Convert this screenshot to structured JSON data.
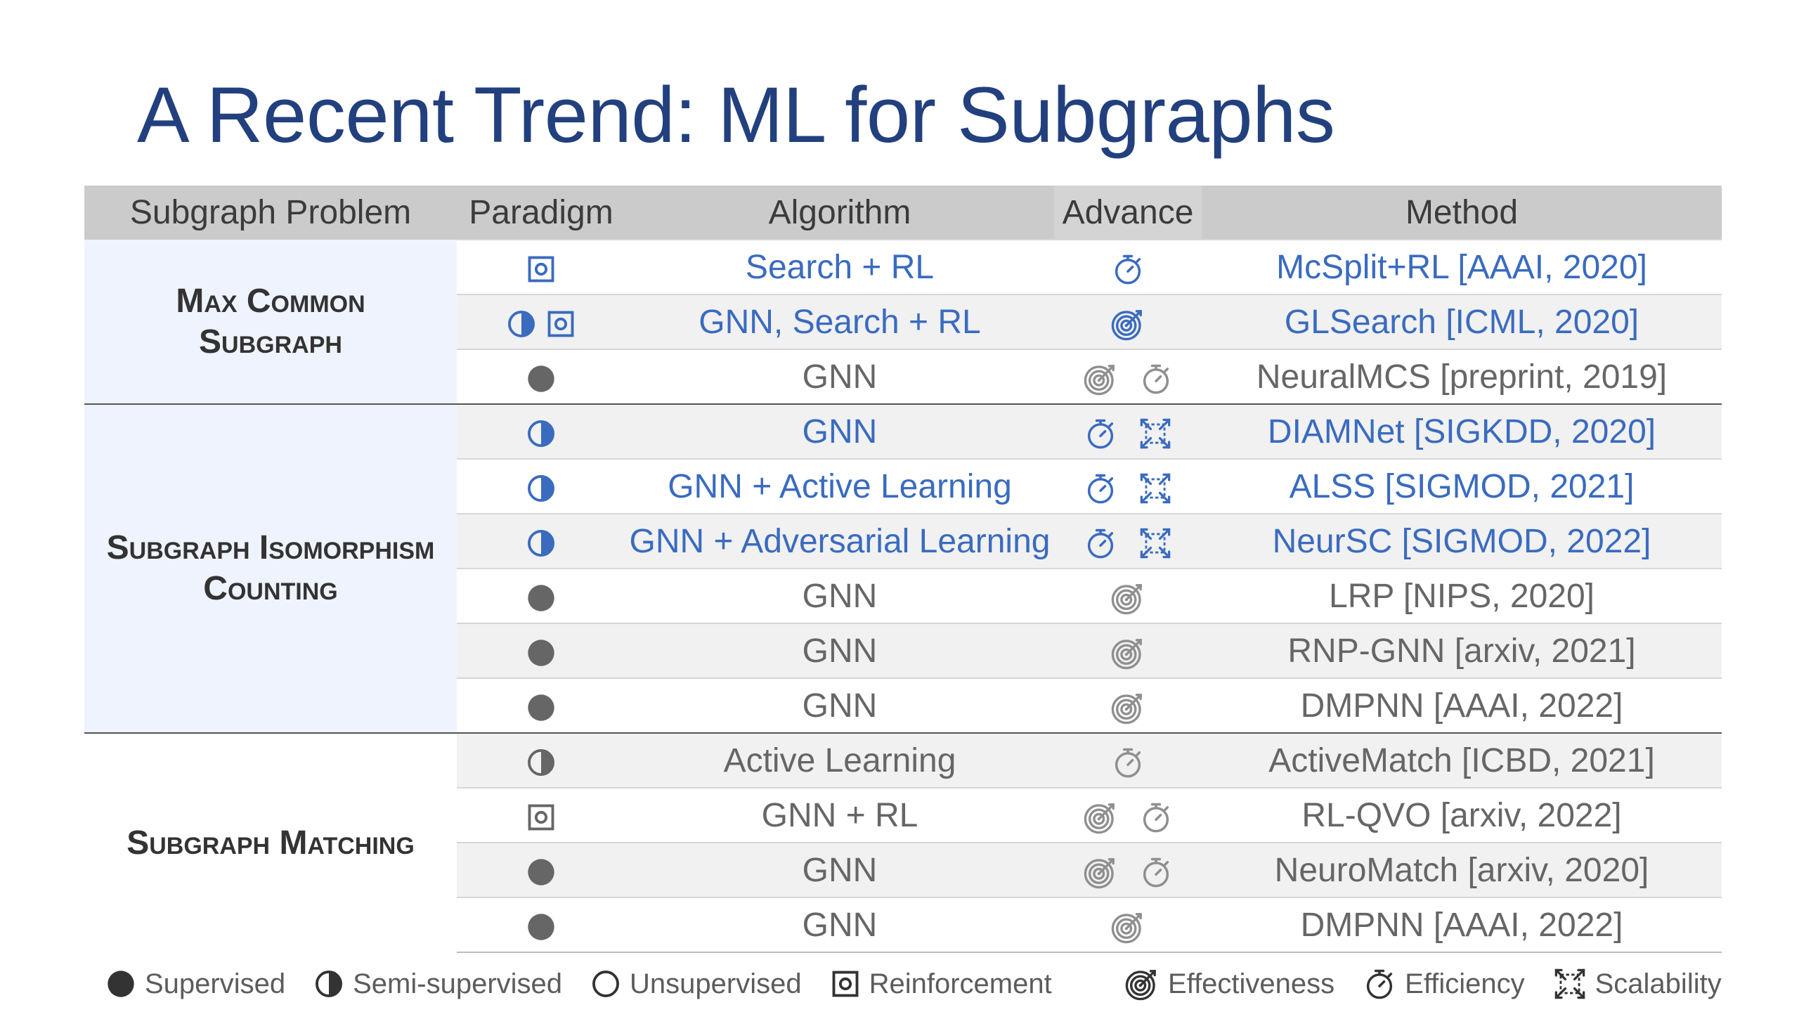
{
  "title": "A Recent Trend: ML for Subgraphs",
  "headers": {
    "problem": "Subgraph Problem",
    "paradigm": "Paradigm",
    "algorithm": "Algorithm",
    "advance": "Advance",
    "method": "Method"
  },
  "groups": [
    {
      "label_line1": "Max Common",
      "label_line2": "Subgraph"
    },
    {
      "label_line1": "Subgraph Isomorphism",
      "label_line2": "Counting"
    },
    {
      "label_line1": "Subgraph Matching",
      "label_line2": ""
    }
  ],
  "rows": [
    {
      "paradigm": [
        "reinforcement"
      ],
      "algorithm": "Search + RL",
      "advance": [
        "efficiency"
      ],
      "method": "McSplit+RL [AAAI, 2020]",
      "tone": "blue"
    },
    {
      "paradigm": [
        "semi-supervised",
        "reinforcement"
      ],
      "algorithm": "GNN, Search + RL",
      "advance": [
        "effectiveness"
      ],
      "method": "GLSearch [ICML, 2020]",
      "tone": "blue"
    },
    {
      "paradigm": [
        "supervised"
      ],
      "algorithm": "GNN",
      "advance": [
        "effectiveness",
        "efficiency"
      ],
      "method": "NeuralMCS [preprint, 2019]",
      "tone": "gray"
    },
    {
      "paradigm": [
        "semi-supervised"
      ],
      "algorithm": "GNN",
      "advance": [
        "efficiency",
        "scalability"
      ],
      "method": "DIAMNet [SIGKDD, 2020]",
      "tone": "blue"
    },
    {
      "paradigm": [
        "semi-supervised"
      ],
      "algorithm": "GNN + Active Learning",
      "advance": [
        "efficiency",
        "scalability"
      ],
      "method": "ALSS [SIGMOD, 2021]",
      "tone": "blue"
    },
    {
      "paradigm": [
        "semi-supervised"
      ],
      "algorithm": "GNN + Adversarial Learning",
      "advance": [
        "efficiency",
        "scalability"
      ],
      "method": "NeurSC [SIGMOD, 2022]",
      "tone": "blue"
    },
    {
      "paradigm": [
        "supervised"
      ],
      "algorithm": "GNN",
      "advance": [
        "effectiveness"
      ],
      "method": "LRP [NIPS, 2020]",
      "tone": "gray"
    },
    {
      "paradigm": [
        "supervised"
      ],
      "algorithm": "GNN",
      "advance": [
        "effectiveness"
      ],
      "method": "RNP-GNN [arxiv, 2021]",
      "tone": "gray"
    },
    {
      "paradigm": [
        "supervised"
      ],
      "algorithm": "GNN",
      "advance": [
        "effectiveness"
      ],
      "method": "DMPNN [AAAI, 2022]",
      "tone": "gray"
    },
    {
      "paradigm": [
        "semi-supervised"
      ],
      "algorithm": "Active Learning",
      "advance": [
        "efficiency"
      ],
      "method": "ActiveMatch [ICBD, 2021]",
      "tone": "gray"
    },
    {
      "paradigm": [
        "reinforcement"
      ],
      "algorithm": "GNN + RL",
      "advance": [
        "effectiveness",
        "efficiency"
      ],
      "method": "RL-QVO [arxiv, 2022]",
      "tone": "gray"
    },
    {
      "paradigm": [
        "supervised"
      ],
      "algorithm": "GNN",
      "advance": [
        "effectiveness",
        "efficiency"
      ],
      "method": "NeuroMatch [arxiv, 2020]",
      "tone": "gray"
    },
    {
      "paradigm": [
        "supervised"
      ],
      "algorithm": "GNN",
      "advance": [
        "effectiveness"
      ],
      "method": "DMPNN [AAAI, 2022]",
      "tone": "gray"
    }
  ],
  "legend": {
    "supervised": "Supervised",
    "semi_supervised": "Semi-supervised",
    "unsupervised": "Unsupervised",
    "reinforcement": "Reinforcement",
    "effectiveness": "Effectiveness",
    "efficiency": "Efficiency",
    "scalability": "Scalability"
  },
  "colors": {
    "title": "#22407e",
    "blue_text": "#3a6bbf",
    "gray_text": "#5a5a5a",
    "group_bg": "#eef3fd",
    "header_bg": "#cbcbcb"
  }
}
